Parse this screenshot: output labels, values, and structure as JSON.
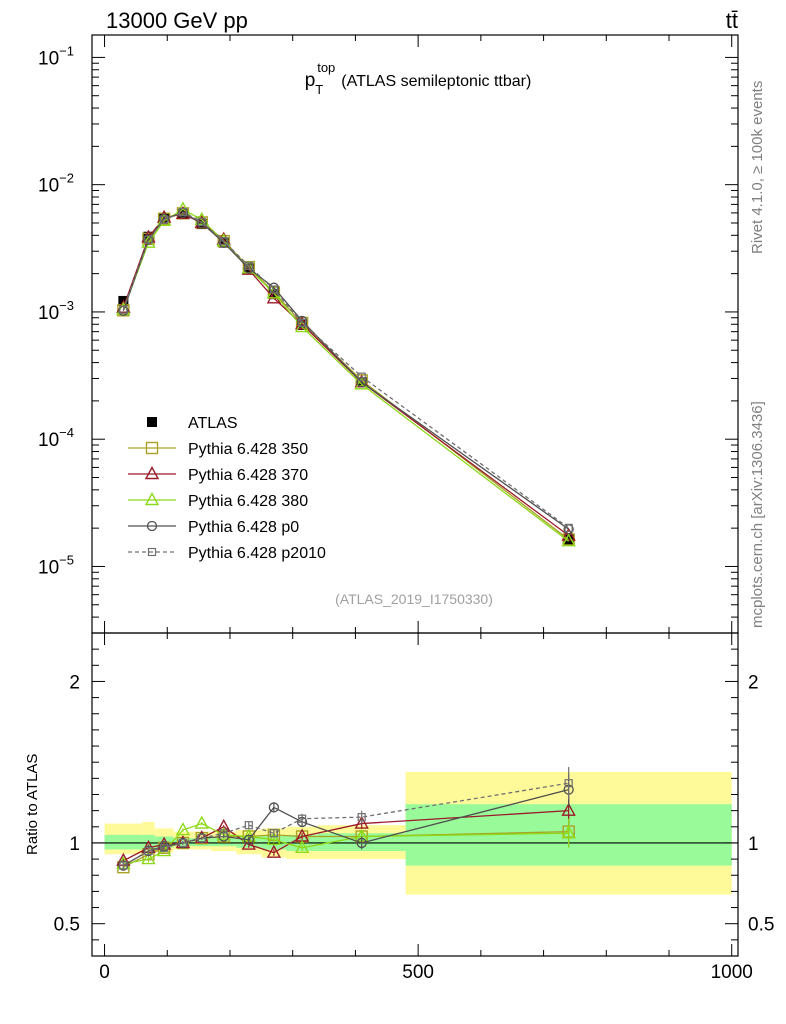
{
  "header": {
    "left": "13000 GeV pp",
    "right": "tt̄"
  },
  "side_label_top": "Rivet 4.1.0, ≥ 100k events",
  "side_label_bottom": "mcplots.cern.ch [arXiv:1306.3436]",
  "watermark": "(ATLAS_2019_I1750330)",
  "colors": {
    "atlas": "#000000",
    "p350": "#a8a227",
    "p370": "#9b1b2a",
    "p380": "#8ed81a",
    "p0": "#505050",
    "p2010": "#707070",
    "band_inner": "#99fa99",
    "band_outer": "#fffa99"
  },
  "chart_data": [
    {
      "type": "line",
      "title": "(ATLAS semileptonic ttbar)",
      "title_main": "p",
      "title_sub": "T",
      "title_sup": "top",
      "xlabel": "",
      "ylabel": "",
      "yscale": "log",
      "xlim": [
        -20,
        1010
      ],
      "ylim": [
        3e-06,
        0.15
      ],
      "yticks": [
        {
          "value": 0.1,
          "base": "10",
          "exp": "−1"
        },
        {
          "value": 0.01,
          "base": "10",
          "exp": "−2"
        },
        {
          "value": 0.001,
          "base": "10",
          "exp": "−3"
        },
        {
          "value": 0.0001,
          "base": "10",
          "exp": "−4"
        },
        {
          "value": 1e-05,
          "base": "10",
          "exp": "−5"
        }
      ],
      "x": [
        30,
        70,
        95,
        125,
        155,
        190,
        230,
        270,
        315,
        410,
        740
      ],
      "series": [
        {
          "key": "atlas",
          "name": "ATLAS",
          "values": [
            0.00122,
            0.0039,
            0.0055,
            0.0059,
            0.0049,
            0.0035,
            0.0022,
            0.00138,
            0.00079,
            0.00028,
            1.63e-05
          ],
          "marker": "filled-square",
          "line": "none"
        },
        {
          "key": "p350",
          "name": "Pythia 6.428 350",
          "values": [
            0.00103,
            0.00375,
            0.0054,
            0.00595,
            0.00505,
            0.0036,
            0.00225,
            0.00142,
            0.00082,
            0.00029,
            1.63e-05
          ],
          "marker": "open-square",
          "line": "solid"
        },
        {
          "key": "p370",
          "name": "Pythia 6.428 370",
          "values": [
            0.00108,
            0.00385,
            0.0055,
            0.0059,
            0.005,
            0.0037,
            0.00215,
            0.00128,
            0.0008,
            0.00028,
            1.75e-05
          ],
          "marker": "open-triangle",
          "line": "solid"
        },
        {
          "key": "p380",
          "name": "Pythia 6.428 380",
          "values": [
            0.00104,
            0.0035,
            0.0052,
            0.0064,
            0.0053,
            0.0036,
            0.0022,
            0.0014,
            0.00076,
            0.00027,
            1.58e-05
          ],
          "marker": "open-triangle",
          "line": "solid"
        },
        {
          "key": "p0",
          "name": "Pythia 6.428 p0",
          "values": [
            0.00102,
            0.0037,
            0.0054,
            0.006,
            0.005,
            0.0035,
            0.0022,
            0.00155,
            0.00085,
            0.00028,
            1.96e-05
          ],
          "marker": "open-circle",
          "line": "solid"
        },
        {
          "key": "p2010",
          "name": "Pythia 6.428 p2010",
          "values": [
            0.00104,
            0.0037,
            0.0053,
            0.0061,
            0.0051,
            0.0036,
            0.0023,
            0.0015,
            0.00082,
            0.00031,
            2.01e-05
          ],
          "marker": "open-square-small",
          "line": "dashed"
        }
      ],
      "legend": "middle-left"
    },
    {
      "type": "line",
      "title": "",
      "xlabel": "",
      "ylabel": "Ratio to ATLAS",
      "xlim": [
        -20,
        1010
      ],
      "ylim": [
        0.3,
        2.3
      ],
      "yticks": [
        {
          "value": 0.5,
          "label": "0.5"
        },
        {
          "value": 1,
          "label": "1"
        },
        {
          "value": 2,
          "label": "2"
        }
      ],
      "xticks": [
        {
          "value": 0,
          "label": "0"
        },
        {
          "value": 500,
          "label": "500"
        },
        {
          "value": 1000,
          "label": "1000"
        }
      ],
      "reference_line": 1,
      "bands": {
        "edges": [
          0,
          60,
          80,
          110,
          140,
          170,
          210,
          250,
          290,
          340,
          480,
          1000
        ],
        "inner": [
          [
            0.96,
            1.05
          ],
          [
            0.96,
            1.05
          ],
          [
            0.97,
            1.04
          ],
          [
            0.98,
            1.03
          ],
          [
            0.98,
            1.03
          ],
          [
            0.98,
            1.03
          ],
          [
            0.97,
            1.04
          ],
          [
            0.96,
            1.05
          ],
          [
            0.95,
            1.05
          ],
          [
            0.95,
            1.06
          ],
          [
            0.86,
            1.24
          ]
        ],
        "outer": [
          [
            0.93,
            1.12
          ],
          [
            0.93,
            1.13
          ],
          [
            0.94,
            1.09
          ],
          [
            0.96,
            1.07
          ],
          [
            0.96,
            1.07
          ],
          [
            0.95,
            1.07
          ],
          [
            0.93,
            1.08
          ],
          [
            0.91,
            1.09
          ],
          [
            0.9,
            1.1
          ],
          [
            0.9,
            1.11
          ],
          [
            0.68,
            1.44
          ]
        ]
      },
      "x": [
        30,
        70,
        95,
        125,
        155,
        190,
        230,
        270,
        315,
        410,
        740
      ],
      "series": [
        {
          "key": "p350",
          "name": "Pythia 6.428 350",
          "values": [
            0.85,
            0.93,
            0.97,
            1.0,
            1.03,
            1.04,
            1.04,
            1.05,
            1.04,
            1.04,
            1.07
          ],
          "marker": "open-square",
          "line": "solid",
          "err": [
            0.02,
            0.02,
            0.01,
            0.01,
            0.01,
            0.01,
            0.02,
            0.02,
            0.02,
            0.03,
            0.09
          ]
        },
        {
          "key": "p370",
          "name": "Pythia 6.428 370",
          "values": [
            0.89,
            0.97,
            0.99,
            1.0,
            1.03,
            1.1,
            0.99,
            0.94,
            1.04,
            1.12,
            1.2
          ],
          "marker": "open-triangle",
          "line": "solid",
          "err": [
            0.02,
            0.02,
            0.01,
            0.01,
            0.01,
            0.01,
            0.02,
            0.02,
            0.02,
            0.03,
            0.09
          ]
        },
        {
          "key": "p380",
          "name": "Pythia 6.428 380",
          "values": [
            0.87,
            0.9,
            0.95,
            1.08,
            1.12,
            1.05,
            1.04,
            1.02,
            0.97,
            1.04,
            1.06
          ],
          "marker": "open-triangle",
          "line": "solid",
          "err": [
            0.02,
            0.02,
            0.01,
            0.01,
            0.01,
            0.01,
            0.02,
            0.02,
            0.02,
            0.03,
            0.09
          ]
        },
        {
          "key": "p0",
          "name": "Pythia 6.428 p0",
          "values": [
            0.86,
            0.95,
            0.98,
            1.0,
            1.03,
            1.04,
            1.02,
            1.22,
            1.13,
            1.0,
            1.33
          ],
          "marker": "open-circle",
          "line": "solid",
          "err": [
            0.02,
            0.02,
            0.01,
            0.01,
            0.01,
            0.01,
            0.02,
            0.03,
            0.03,
            0.04,
            0.1
          ]
        },
        {
          "key": "p2010",
          "name": "Pythia 6.428 p2010",
          "values": [
            0.86,
            0.95,
            0.97,
            1.0,
            1.03,
            1.06,
            1.11,
            1.06,
            1.15,
            1.16,
            1.37
          ],
          "marker": "open-square-small",
          "line": "dashed",
          "err": [
            0.02,
            0.02,
            0.01,
            0.01,
            0.01,
            0.01,
            0.02,
            0.02,
            0.03,
            0.04,
            0.1
          ]
        }
      ]
    }
  ]
}
